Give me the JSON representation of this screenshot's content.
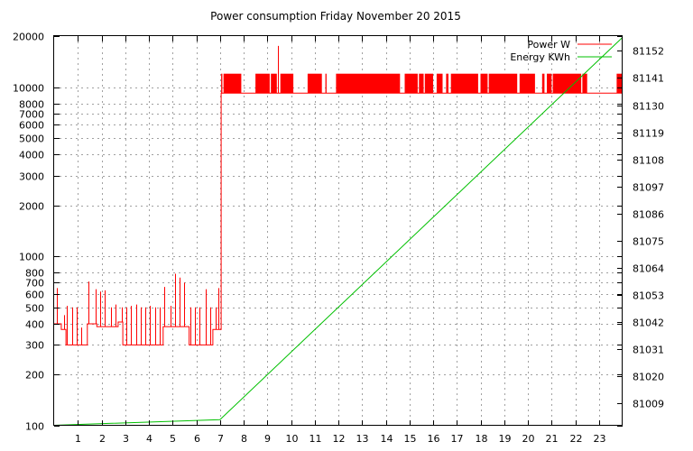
{
  "chart_data": {
    "type": "line",
    "title": "Power consumption Friday November 20 2015",
    "xlabel": "",
    "ylabel": "",
    "y2label": "",
    "x_range": [
      0,
      24
    ],
    "x_ticks": [
      "1",
      "2",
      "3",
      "4",
      "5",
      "6",
      "7",
      "8",
      "9",
      "10",
      "11",
      "12",
      "13",
      "14",
      "15",
      "16",
      "17",
      "18",
      "19",
      "20",
      "21",
      "22",
      "23"
    ],
    "y_scale": "log",
    "y_range": [
      100,
      20000
    ],
    "y_ticks": [
      "100",
      "200",
      "300",
      "400",
      "500",
      "600",
      "700",
      "800",
      "1000",
      "2000",
      "3000",
      "4000",
      "5000",
      "6000",
      "7000",
      "8000",
      "10000",
      "20000"
    ],
    "y2_range": [
      81000,
      81158
    ],
    "y2_ticks": [
      "81009",
      "81020",
      "81031",
      "81042",
      "81053",
      "81064",
      "81075",
      "81086",
      "81097",
      "81108",
      "81119",
      "81130",
      "81141",
      "81152"
    ],
    "grid": true,
    "legend_position": "top-right",
    "series": [
      {
        "name": "Power W",
        "color": "#ff0000",
        "axis": "left",
        "baseline_segments": [
          {
            "x_start": 0.0,
            "x_end": 0.3,
            "value": 400
          },
          {
            "x_start": 0.3,
            "x_end": 0.5,
            "value": 370
          },
          {
            "x_start": 0.5,
            "x_end": 1.4,
            "value": 300
          },
          {
            "x_start": 1.4,
            "x_end": 1.8,
            "value": 400
          },
          {
            "x_start": 1.8,
            "x_end": 2.2,
            "value": 385
          },
          {
            "x_start": 2.2,
            "x_end": 2.7,
            "value": 385
          },
          {
            "x_start": 2.7,
            "x_end": 2.9,
            "value": 410
          },
          {
            "x_start": 2.9,
            "x_end": 3.6,
            "value": 300
          },
          {
            "x_start": 3.6,
            "x_end": 4.6,
            "value": 300
          },
          {
            "x_start": 4.6,
            "x_end": 5.1,
            "value": 385
          },
          {
            "x_start": 5.1,
            "x_end": 5.7,
            "value": 385
          },
          {
            "x_start": 5.7,
            "x_end": 6.7,
            "value": 300
          },
          {
            "x_start": 6.7,
            "x_end": 7.05,
            "value": 370
          },
          {
            "x_start": 7.05,
            "x_end": 24.0,
            "value": 9200
          }
        ],
        "spikes": [
          {
            "x": 0.1,
            "value": 650
          },
          {
            "x": 0.4,
            "value": 450
          },
          {
            "x": 0.55,
            "value": 510
          },
          {
            "x": 0.75,
            "value": 500
          },
          {
            "x": 0.95,
            "value": 500
          },
          {
            "x": 1.15,
            "value": 380
          },
          {
            "x": 1.45,
            "value": 710
          },
          {
            "x": 1.75,
            "value": 640
          },
          {
            "x": 1.95,
            "value": 620
          },
          {
            "x": 2.15,
            "value": 630
          },
          {
            "x": 2.4,
            "value": 500
          },
          {
            "x": 2.6,
            "value": 520
          },
          {
            "x": 2.85,
            "value": 500
          },
          {
            "x": 3.05,
            "value": 500
          },
          {
            "x": 3.25,
            "value": 510
          },
          {
            "x": 3.45,
            "value": 520
          },
          {
            "x": 3.65,
            "value": 500
          },
          {
            "x": 3.85,
            "value": 500
          },
          {
            "x": 4.05,
            "value": 510
          },
          {
            "x": 4.25,
            "value": 500
          },
          {
            "x": 4.45,
            "value": 500
          },
          {
            "x": 4.65,
            "value": 660
          },
          {
            "x": 4.9,
            "value": 510
          },
          {
            "x": 5.1,
            "value": 790
          },
          {
            "x": 5.3,
            "value": 750
          },
          {
            "x": 5.5,
            "value": 700
          },
          {
            "x": 5.75,
            "value": 500
          },
          {
            "x": 5.95,
            "value": 500
          },
          {
            "x": 6.15,
            "value": 500
          },
          {
            "x": 6.4,
            "value": 640
          },
          {
            "x": 6.6,
            "value": 500
          },
          {
            "x": 6.8,
            "value": 500
          },
          {
            "x": 6.95,
            "value": 650
          },
          {
            "x": 9.45,
            "value": 17500
          }
        ],
        "high_band_value": 12000,
        "high_band_blocks": [
          [
            7.05,
            7.1
          ],
          [
            7.15,
            7.9
          ],
          [
            8.5,
            9.1
          ],
          [
            9.15,
            9.4
          ],
          [
            9.55,
            10.1
          ],
          [
            10.7,
            11.3
          ],
          [
            11.45,
            11.5
          ],
          [
            11.9,
            14.6
          ],
          [
            14.8,
            15.35
          ],
          [
            15.4,
            15.6
          ],
          [
            15.65,
            16.0
          ],
          [
            16.15,
            16.4
          ],
          [
            16.55,
            16.65
          ],
          [
            16.75,
            17.9
          ],
          [
            18.0,
            18.3
          ],
          [
            18.35,
            19.55
          ],
          [
            19.65,
            20.3
          ],
          [
            20.6,
            20.7
          ],
          [
            20.8,
            21.0
          ],
          [
            21.05,
            22.25
          ],
          [
            22.3,
            22.5
          ],
          [
            23.75,
            24.0
          ]
        ]
      },
      {
        "name": "Energy KWh",
        "color": "#00c000",
        "axis": "right",
        "x": [
          0,
          7,
          24
        ],
        "y": [
          81000.2,
          81002.5,
          81157.5
        ]
      }
    ]
  }
}
